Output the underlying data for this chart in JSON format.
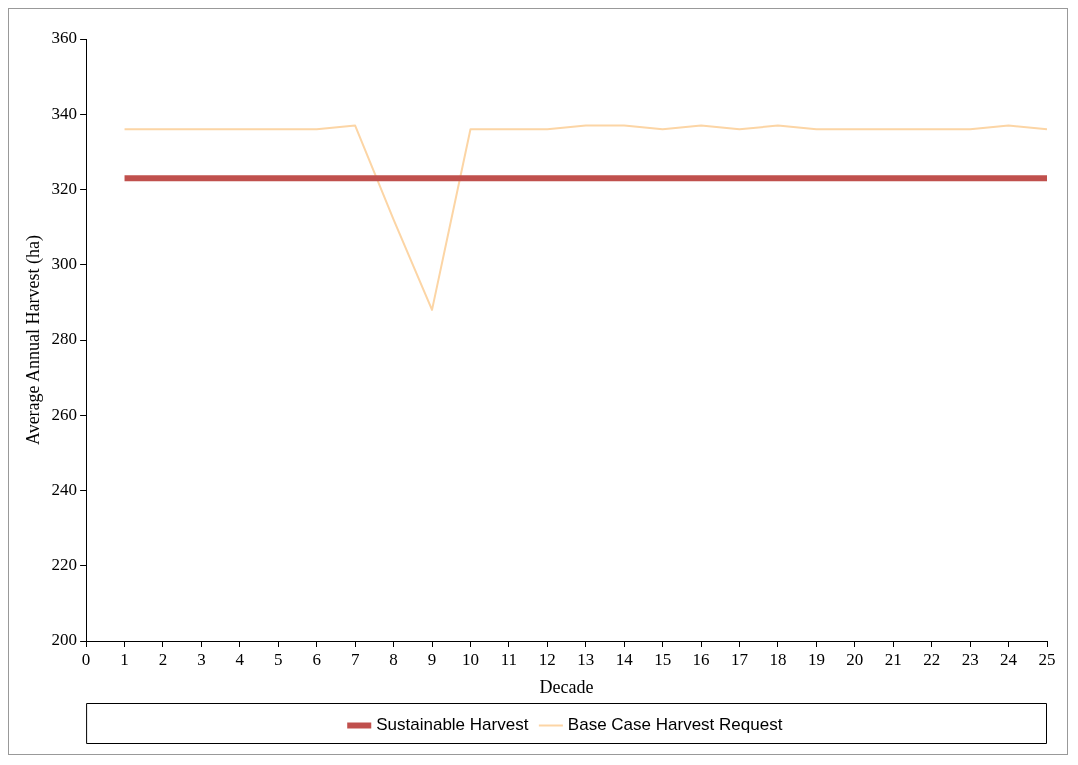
{
  "chart_data": {
    "type": "line",
    "xlabel": "Decade",
    "ylabel": "Average Annual Harvest (ha)",
    "x": [
      1,
      2,
      3,
      4,
      5,
      6,
      7,
      8,
      9,
      10,
      11,
      12,
      13,
      14,
      15,
      16,
      17,
      18,
      19,
      20,
      21,
      22,
      23,
      24,
      25
    ],
    "series": [
      {
        "name": "Sustainable Harvest",
        "color": "#c0504d",
        "values": [
          323,
          323,
          323,
          323,
          323,
          323,
          323,
          323,
          323,
          323,
          323,
          323,
          323,
          323,
          323,
          323,
          323,
          323,
          323,
          323,
          323,
          323,
          323,
          323,
          323
        ]
      },
      {
        "name": "Base Case Harvest Request",
        "color": "#fcd5a5",
        "values": [
          336,
          336,
          336,
          336,
          336,
          336,
          337,
          312,
          288,
          336,
          336,
          336,
          337,
          337,
          336,
          337,
          336,
          337,
          336,
          336,
          336,
          336,
          336,
          337,
          336
        ]
      }
    ],
    "xlim": [
      0,
      25
    ],
    "xticks": [
      0,
      1,
      2,
      3,
      4,
      5,
      6,
      7,
      8,
      9,
      10,
      11,
      12,
      13,
      14,
      15,
      16,
      17,
      18,
      19,
      20,
      21,
      22,
      23,
      24,
      25
    ],
    "ylim": [
      200,
      360
    ],
    "yticks": [
      200,
      220,
      240,
      260,
      280,
      300,
      320,
      340,
      360
    ],
    "grid": false,
    "legend": "bottom",
    "marker": "none",
    "line_style": "solid"
  }
}
